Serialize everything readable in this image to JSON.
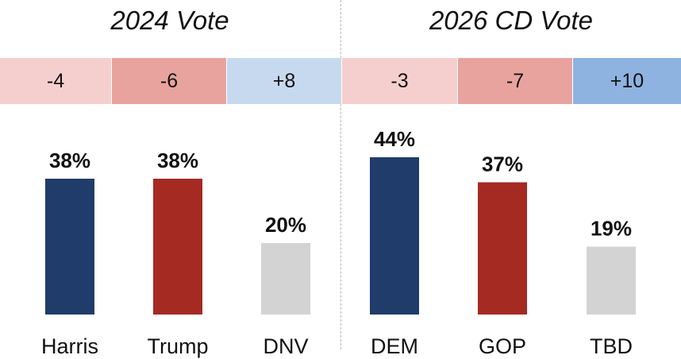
{
  "chart_data": [
    {
      "type": "bar",
      "title": "2024 Vote",
      "categories": [
        "Harris",
        "Trump",
        "DNV"
      ],
      "values": [
        38,
        38,
        20
      ],
      "value_labels": [
        "38%",
        "38%",
        "20%"
      ],
      "differences": [
        "-4",
        "-6",
        "+8"
      ],
      "bar_colors": [
        "#1f3c6b",
        "#a52a22",
        "#d3d3d3"
      ],
      "difference_colors": [
        "#f5cfcd",
        "#e9a39e",
        "#c7d9ef"
      ]
    },
    {
      "type": "bar",
      "title": "2026 CD Vote",
      "categories": [
        "DEM",
        "GOP",
        "TBD"
      ],
      "values": [
        44,
        37,
        19
      ],
      "value_labels": [
        "44%",
        "37%",
        "19%"
      ],
      "differences": [
        "-3",
        "-7",
        "+10"
      ],
      "bar_colors": [
        "#1f3c6b",
        "#a52a22",
        "#d3d3d3"
      ],
      "difference_colors": [
        "#f5cfcd",
        "#e9a39e",
        "#8eb3e0"
      ]
    }
  ]
}
